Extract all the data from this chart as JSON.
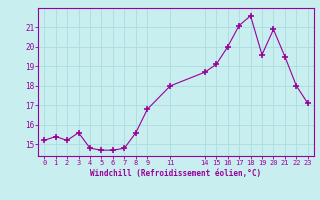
{
  "x": [
    0,
    1,
    2,
    3,
    4,
    5,
    6,
    7,
    8,
    9,
    11,
    14,
    15,
    16,
    17,
    18,
    19,
    20,
    21,
    22,
    23
  ],
  "y": [
    15.2,
    15.4,
    15.2,
    15.6,
    14.8,
    14.7,
    14.7,
    14.8,
    15.6,
    16.8,
    18.0,
    18.7,
    19.1,
    20.0,
    21.1,
    21.6,
    19.6,
    20.9,
    19.5,
    18.0,
    17.1
  ],
  "xticks": [
    0,
    1,
    2,
    3,
    4,
    5,
    6,
    7,
    8,
    9,
    11,
    14,
    15,
    16,
    17,
    18,
    19,
    20,
    21,
    22,
    23
  ],
  "yticks": [
    15,
    16,
    17,
    18,
    19,
    20,
    21
  ],
  "ylim": [
    14.4,
    22.0
  ],
  "xlim": [
    -0.5,
    23.5
  ],
  "xlabel": "Windchill (Refroidissement éolien,°C)",
  "line_color": "#990099",
  "marker": "+",
  "bg_color": "#c8eef0",
  "grid_color": "#aadddd",
  "tick_color": "#990099",
  "label_color": "#990099"
}
